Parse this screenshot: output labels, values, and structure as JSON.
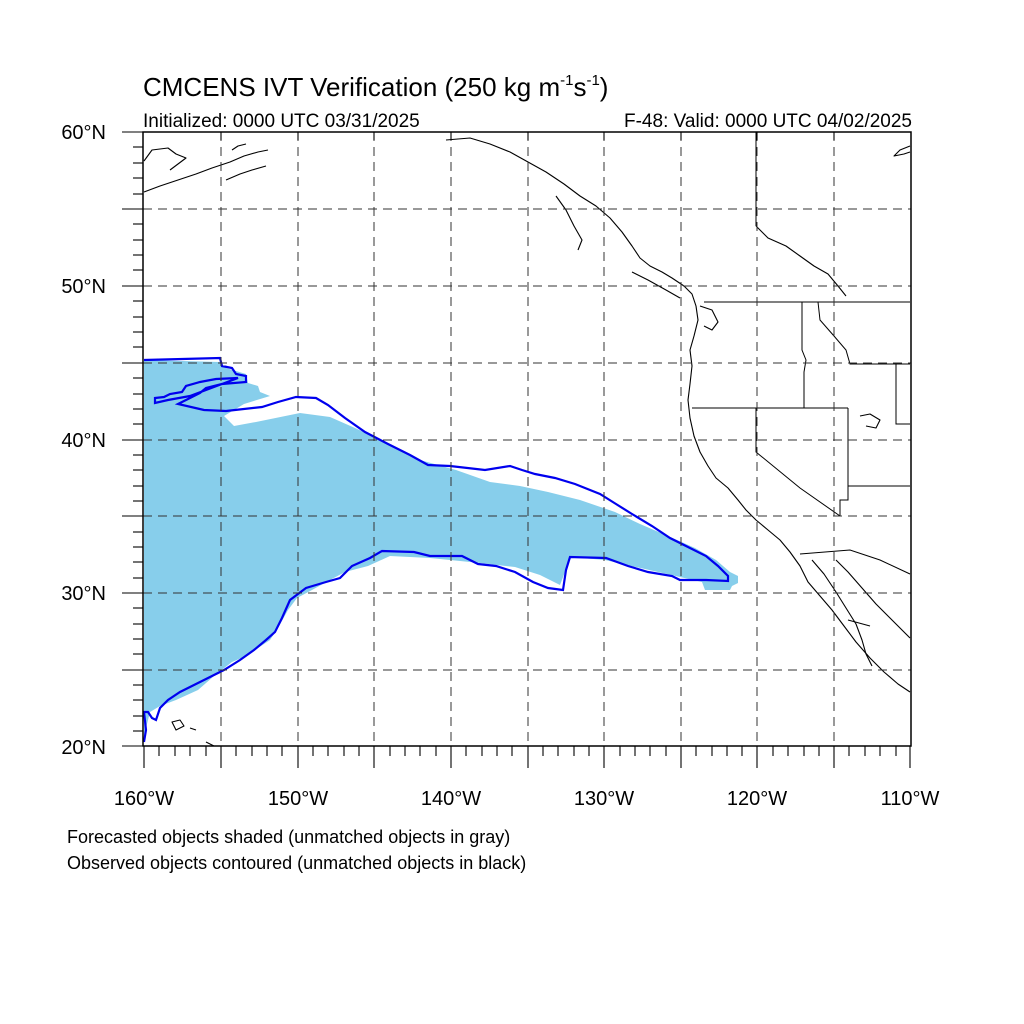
{
  "figure": {
    "title_main": "CMCENS IVT Verification (250 kg m",
    "title_sup1": "-1",
    "title_mid": "s",
    "title_sup2": "-1",
    "title_end": ")",
    "initialized": "Initialized: 0000 UTC 03/31/2025",
    "valid": "F-48: Valid: 0000 UTC 04/02/2025"
  },
  "axes": {
    "lat_labels": [
      "60°N",
      "50°N",
      "40°N",
      "30°N",
      "20°N"
    ],
    "lon_labels": [
      "160°W",
      "150°W",
      "140°W",
      "130°W",
      "120°W",
      "110°W"
    ],
    "lat_range": [
      20,
      60
    ],
    "lon_range": [
      -160,
      -110
    ],
    "grid_lines": "dashed",
    "grid_spacing_deg": 5
  },
  "legend": {
    "line1": "Forecasted objects shaded (unmatched objects in gray)",
    "line2": "Observed objects contoured (unmatched objects in black)"
  },
  "colors": {
    "forecast_fill": "#87ceeb",
    "observed_contour": "#0000ee",
    "coastline": "#000000",
    "grid": "#444444"
  }
}
